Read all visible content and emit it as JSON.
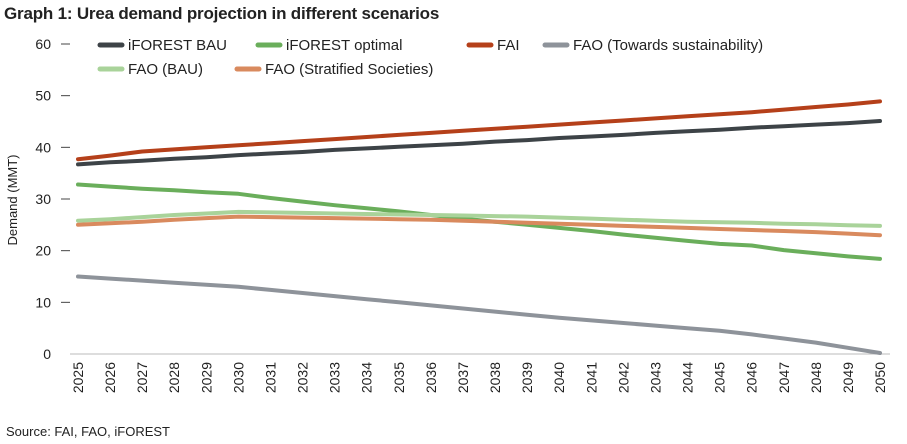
{
  "chart_data": {
    "type": "line",
    "title": "Graph 1: Urea demand projection in different scenarios",
    "xlabel": "",
    "ylabel": "Demand (MMT)",
    "ylim": [
      0,
      60
    ],
    "yticks": [
      "0",
      "10",
      "20",
      "30",
      "40",
      "50",
      "60"
    ],
    "x": [
      "2025",
      "2026",
      "2027",
      "2028",
      "2029",
      "2030",
      "2031",
      "2032",
      "2033",
      "2034",
      "2035",
      "2036",
      "2037",
      "2038",
      "2039",
      "2040",
      "2041",
      "2042",
      "2043",
      "2044",
      "2045",
      "2046",
      "2047",
      "2048",
      "2049",
      "2050"
    ],
    "grid": false,
    "legend_position": "top",
    "series": [
      {
        "name": "iFOREST BAU",
        "color": "#3d4347",
        "values": [
          36.7,
          37.1,
          37.4,
          37.8,
          38.1,
          38.5,
          38.8,
          39.1,
          39.5,
          39.8,
          40.1,
          40.4,
          40.7,
          41.1,
          41.4,
          41.8,
          42.1,
          42.4,
          42.8,
          43.1,
          43.4,
          43.8,
          44.1,
          44.4,
          44.7,
          45.1
        ]
      },
      {
        "name": "iFOREST optimal",
        "color": "#6aae5b",
        "values": [
          32.8,
          32.4,
          32.0,
          31.7,
          31.3,
          31.0,
          30.2,
          29.5,
          28.8,
          28.2,
          27.6,
          26.9,
          26.2,
          25.6,
          25.0,
          24.4,
          23.8,
          23.1,
          22.5,
          21.9,
          21.3,
          21.0,
          20.1,
          19.5,
          18.9,
          18.4
        ]
      },
      {
        "name": "FAI",
        "color": "#b5401a",
        "values": [
          37.7,
          38.4,
          39.2,
          39.6,
          40.0,
          40.4,
          40.8,
          41.2,
          41.6,
          42.0,
          42.4,
          42.8,
          43.2,
          43.6,
          44.0,
          44.4,
          44.8,
          45.2,
          45.6,
          46.0,
          46.4,
          46.8,
          47.3,
          47.8,
          48.3,
          48.9
        ]
      },
      {
        "name": "FAO (Towards sustainability)",
        "color": "#8e939a",
        "values": [
          15.0,
          14.6,
          14.2,
          13.8,
          13.4,
          13.0,
          12.4,
          11.8,
          11.2,
          10.6,
          10.0,
          9.4,
          8.8,
          8.2,
          7.6,
          7.0,
          6.5,
          6.0,
          5.5,
          5.0,
          4.5,
          3.8,
          3.0,
          2.2,
          1.2,
          0.2
        ]
      },
      {
        "name": "FAO (BAU)",
        "color": "#a9d39a",
        "values": [
          25.8,
          26.1,
          26.5,
          26.9,
          27.2,
          27.5,
          27.4,
          27.3,
          27.2,
          27.1,
          27.0,
          26.9,
          26.8,
          26.7,
          26.6,
          26.4,
          26.2,
          26.0,
          25.8,
          25.6,
          25.5,
          25.4,
          25.2,
          25.1,
          24.9,
          24.8
        ]
      },
      {
        "name": "FAO (Stratified Societies)",
        "color": "#d98a5e",
        "values": [
          25.0,
          25.3,
          25.6,
          26.0,
          26.3,
          26.6,
          26.5,
          26.4,
          26.3,
          26.2,
          26.1,
          26.0,
          25.8,
          25.6,
          25.4,
          25.2,
          25.0,
          24.8,
          24.6,
          24.4,
          24.2,
          24.0,
          23.8,
          23.6,
          23.3,
          23.0
        ]
      }
    ]
  },
  "source": "Source: FAI, FAO, iFOREST"
}
